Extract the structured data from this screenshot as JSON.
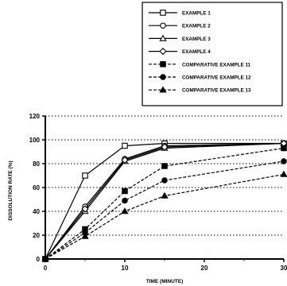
{
  "chart_data": {
    "type": "line",
    "xlabel": "TIME (MINUTE)",
    "ylabel": "DISSOLUTION RATE (%)",
    "xlim": [
      0,
      30
    ],
    "ylim": [
      0,
      120
    ],
    "x_ticks": [
      "0",
      "10",
      "20",
      "30"
    ],
    "y_ticks": [
      "0",
      "20",
      "40",
      "60",
      "80",
      "100",
      "120"
    ],
    "grid": "dotted horizontal",
    "legend_position": "top-right",
    "x": [
      0,
      5,
      10,
      15,
      30
    ],
    "series": [
      {
        "name": "EXAMPLE 1",
        "marker": "open-square",
        "line": "solid",
        "values": [
          0,
          70,
          95,
          97,
          97
        ]
      },
      {
        "name": "EXAMPLE 2",
        "marker": "open-circle",
        "line": "solid",
        "values": [
          0,
          44,
          84,
          95,
          97
        ]
      },
      {
        "name": "EXAMPLE 3",
        "marker": "open-triangle",
        "line": "solid",
        "values": [
          0,
          40,
          82,
          93,
          97
        ]
      },
      {
        "name": "EXAMPLE 4",
        "marker": "open-diamond",
        "line": "solid",
        "values": [
          0,
          42,
          83,
          94,
          97
        ]
      },
      {
        "name": "COMPARATIVE EXAMPLE 11",
        "marker": "filled-square",
        "line": "dashed",
        "values": [
          0,
          25,
          57,
          78,
          93
        ]
      },
      {
        "name": "COMPARATIVE EXAMPLE 12",
        "marker": "filled-circle",
        "line": "dashed",
        "values": [
          0,
          22,
          49,
          66,
          82
        ]
      },
      {
        "name": "COMPARATIVE EXAMPLE 13",
        "marker": "filled-triangle",
        "line": "dashed",
        "values": [
          0,
          19,
          40,
          53,
          71
        ]
      }
    ]
  }
}
